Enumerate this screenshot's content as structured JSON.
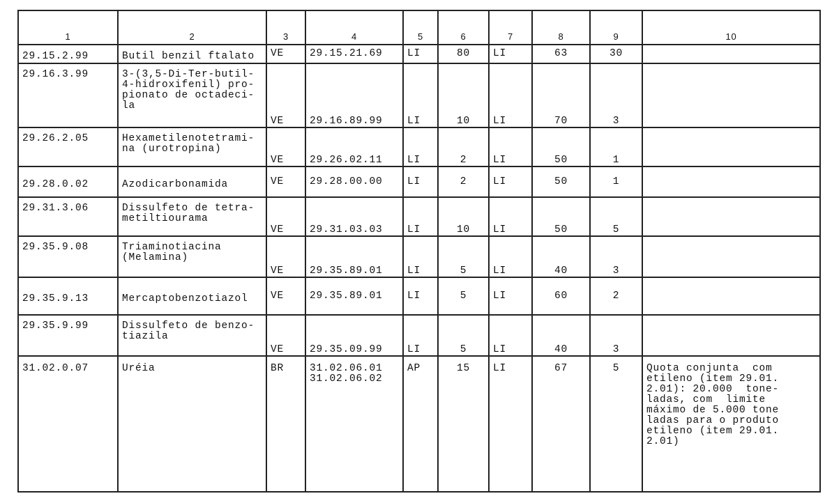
{
  "headers": [
    "1",
    "2",
    "3",
    "4",
    "5",
    "6",
    "7",
    "8",
    "9",
    "10"
  ],
  "rows": [
    {
      "c1": "29.15.2.99",
      "c2": "Butil benzil ftalato",
      "c3": "VE",
      "c4": "29.15.21.69",
      "c5": "LI",
      "c6": "80",
      "c7": "LI",
      "c8": "63",
      "c9": "30",
      "c10": ""
    },
    {
      "c1": "29.16.3.99",
      "c2": "3-(3,5-Di-Ter-butil-\n4-hidroxifenil) pro-\npionato de octadeci-\nla",
      "c3": "VE",
      "c4": "29.16.89.99",
      "c5": "LI",
      "c6": "10",
      "c7": "LI",
      "c8": "70",
      "c9": "3",
      "c10": ""
    },
    {
      "c1": "29.26.2.05",
      "c2": "Hexametilenotetrami-\nna (urotropina)",
      "c3": "VE",
      "c4": "29.26.02.11",
      "c5": "LI",
      "c6": "2",
      "c7": "LI",
      "c8": "50",
      "c9": "1",
      "c10": ""
    },
    {
      "c1": "29.28.0.02",
      "c2": "Azodicarbonamida",
      "c3": "VE",
      "c4": "29.28.00.00",
      "c5": "LI",
      "c6": "2",
      "c7": "LI",
      "c8": "50",
      "c9": "1",
      "c10": ""
    },
    {
      "c1": "29.31.3.06",
      "c2": "Dissulfeto de tetra-\nmetiltiourama",
      "c3": "VE",
      "c4": "29.31.03.03",
      "c5": "LI",
      "c6": "10",
      "c7": "LI",
      "c8": "50",
      "c9": "5",
      "c10": ""
    },
    {
      "c1": "29.35.9.08",
      "c2": "Triaminotiacina\n(Melamina)",
      "c3": "VE",
      "c4": "29.35.89.01",
      "c5": "LI",
      "c6": "5",
      "c7": "LI",
      "c8": "40",
      "c9": "3",
      "c10": ""
    },
    {
      "c1": "29.35.9.13",
      "c2": "Mercaptobenzotiazol",
      "c3": "VE",
      "c4": "29.35.89.01",
      "c5": "LI",
      "c6": "5",
      "c7": "LI",
      "c8": "60",
      "c9": "2",
      "c10": ""
    },
    {
      "c1": "29.35.9.99",
      "c2": "Dissulfeto de benzo-\ntiazila",
      "c3": "VE",
      "c4": "29.35.09.99",
      "c5": "LI",
      "c6": "5",
      "c7": "LI",
      "c8": "40",
      "c9": "3",
      "c10": ""
    },
    {
      "c1": "31.02.0.07",
      "c2": "Uréia",
      "c3": "BR",
      "c4": "31.02.06.01\n31.02.06.02",
      "c5": "AP",
      "c6": "15",
      "c7": "LI",
      "c8": "67",
      "c9": "5",
      "c10": "Quota conjunta  com\netileno (item 29.01.\n2.01): 20.000  tone-\nladas, com  limite\nmáximo de 5.000 tone\nladas para o produto\netileno (item 29.01.\n2.01)"
    }
  ]
}
